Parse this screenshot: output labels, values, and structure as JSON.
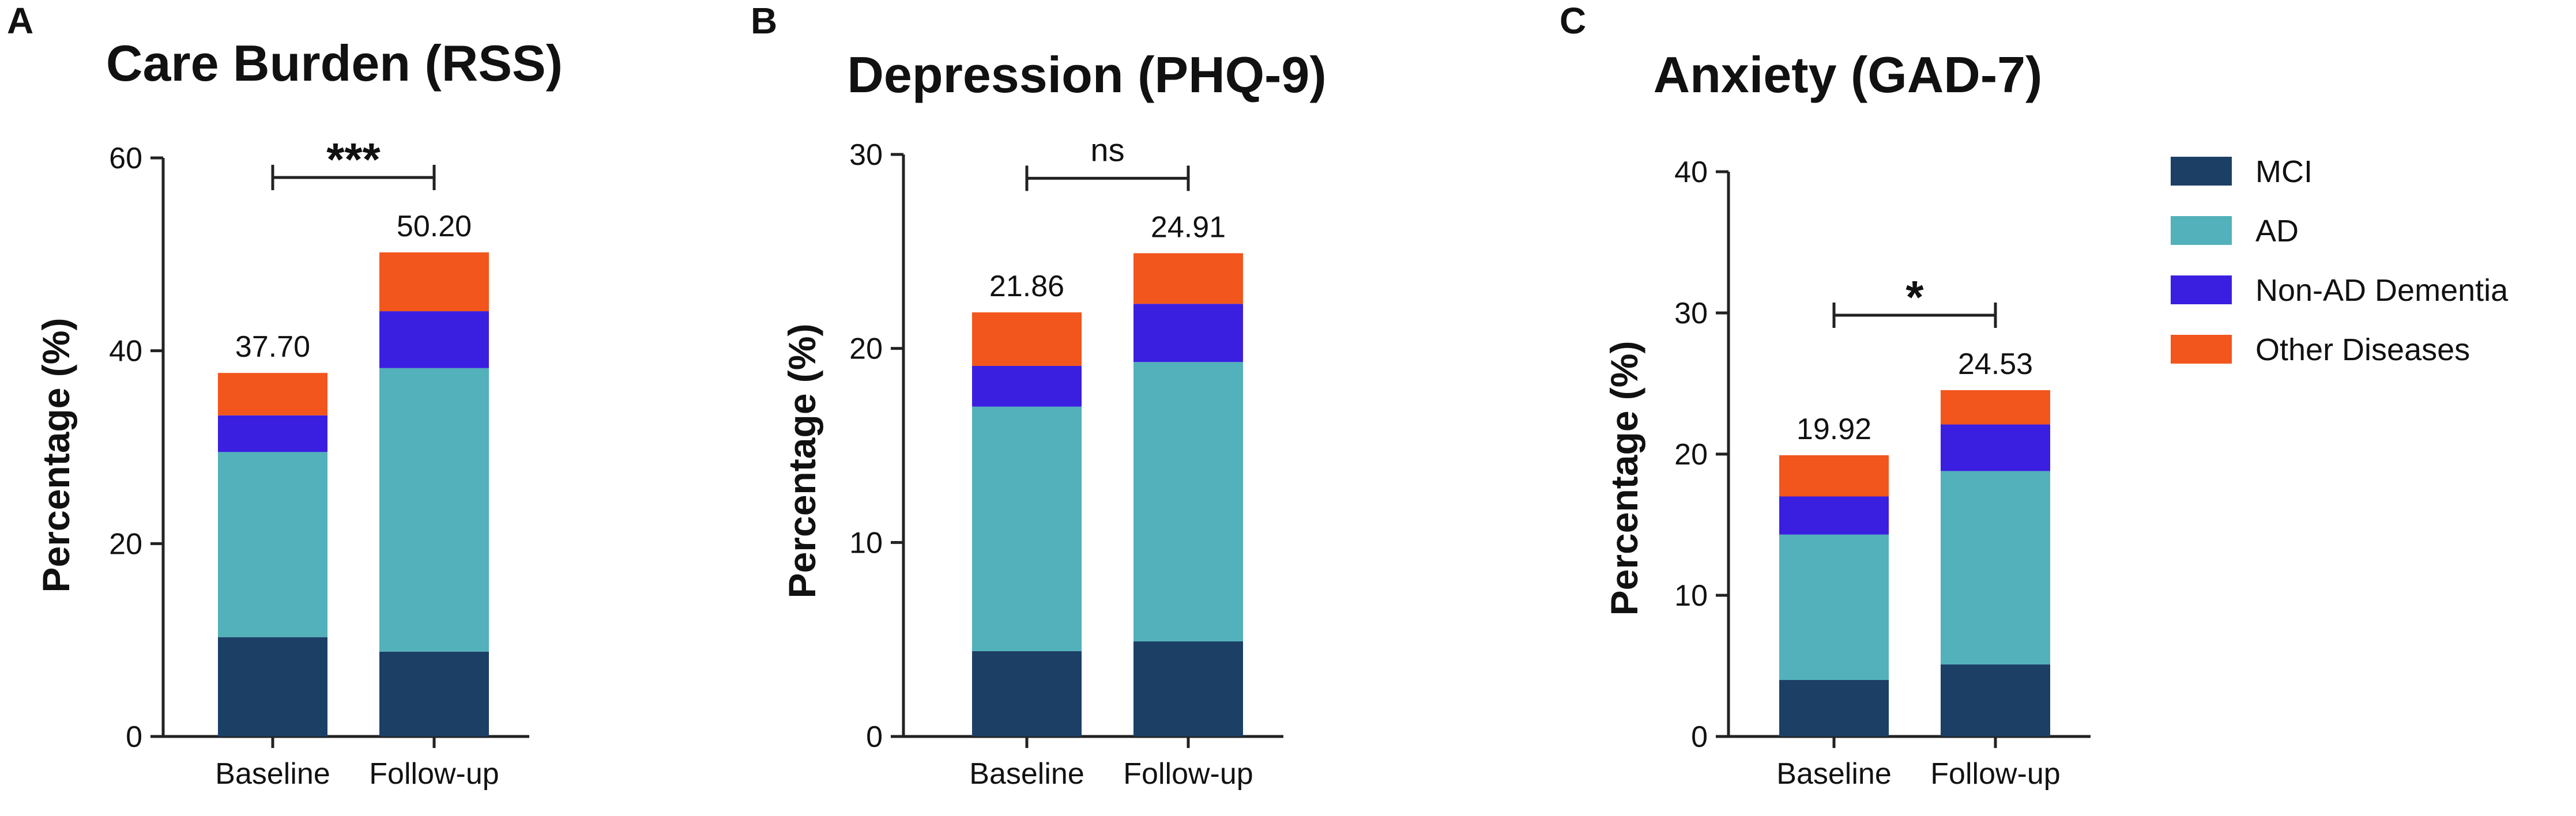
{
  "colors": {
    "MCI": "#1c3f66",
    "AD": "#52b1ba",
    "Non-AD Dementia": "#3b1fe0",
    "Other Diseases": "#f2561c"
  },
  "legend": [
    "MCI",
    "AD",
    "Non-AD Dementia",
    "Other Diseases"
  ],
  "chart_data": [
    {
      "panel": "A",
      "type": "bar",
      "stacked": true,
      "title": "Care Burden (RSS)",
      "ylabel": "Percentage (%)",
      "ylim": [
        0,
        60
      ],
      "yticks": [
        0,
        20,
        40,
        60
      ],
      "categories": [
        "Baseline",
        "Follow-up"
      ],
      "series": [
        {
          "name": "MCI",
          "values": [
            10.3,
            8.8
          ]
        },
        {
          "name": "AD",
          "values": [
            19.2,
            29.4
          ]
        },
        {
          "name": "Non-AD Dementia",
          "values": [
            3.8,
            5.9
          ]
        },
        {
          "name": "Other Diseases",
          "values": [
            4.4,
            6.1
          ]
        }
      ],
      "totals": [
        "37.70",
        "50.20"
      ],
      "significance": "***"
    },
    {
      "panel": "B",
      "type": "bar",
      "stacked": true,
      "title": "Depression (PHQ-9)",
      "ylabel": "Percentage (%)",
      "ylim": [
        0,
        30
      ],
      "yticks": [
        0,
        10,
        20,
        30
      ],
      "categories": [
        "Baseline",
        "Follow-up"
      ],
      "series": [
        {
          "name": "MCI",
          "values": [
            4.4,
            4.9
          ]
        },
        {
          "name": "AD",
          "values": [
            12.6,
            14.4
          ]
        },
        {
          "name": "Non-AD Dementia",
          "values": [
            2.1,
            3.0
          ]
        },
        {
          "name": "Other Diseases",
          "values": [
            2.76,
            2.61
          ]
        }
      ],
      "totals": [
        "21.86",
        "24.91"
      ],
      "significance": "ns"
    },
    {
      "panel": "C",
      "type": "bar",
      "stacked": true,
      "title": "Anxiety (GAD-7)",
      "ylabel": "Percentage (%)",
      "ylim": [
        0,
        40
      ],
      "yticks": [
        0,
        10,
        20,
        30,
        40
      ],
      "categories": [
        "Baseline",
        "Follow-up"
      ],
      "series": [
        {
          "name": "MCI",
          "values": [
            4.0,
            5.1
          ]
        },
        {
          "name": "AD",
          "values": [
            10.3,
            13.7
          ]
        },
        {
          "name": "Non-AD Dementia",
          "values": [
            2.7,
            3.3
          ]
        },
        {
          "name": "Other Diseases",
          "values": [
            2.92,
            2.43
          ]
        }
      ],
      "totals": [
        "19.92",
        "24.53"
      ],
      "significance": "*"
    }
  ]
}
